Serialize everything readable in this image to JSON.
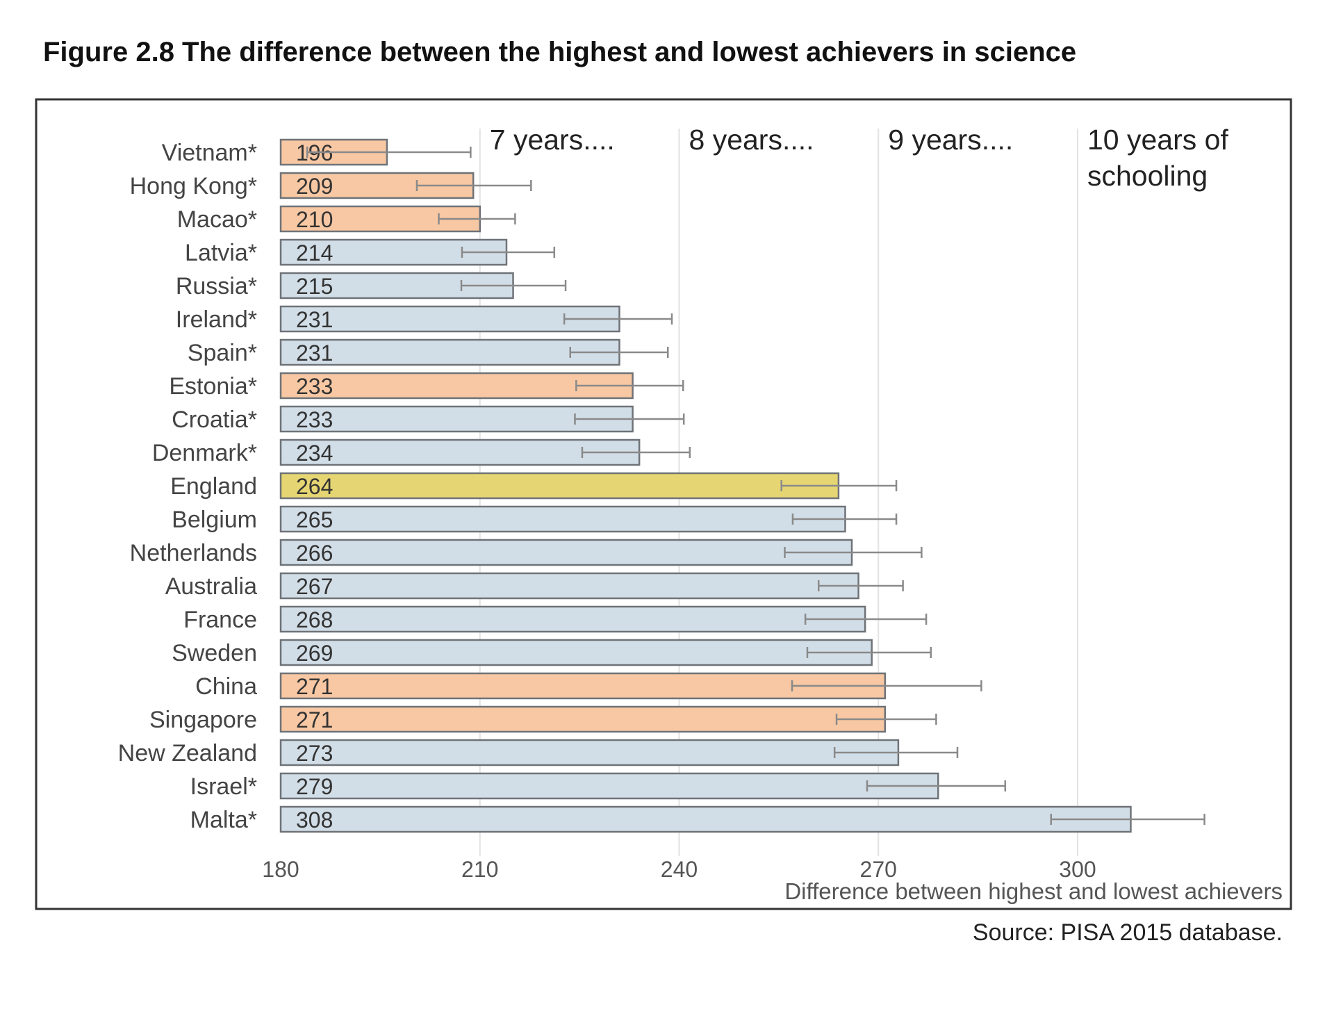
{
  "chart_data": {
    "type": "bar",
    "orientation": "horizontal",
    "title": "Figure 2.8 The difference between the highest and lowest achievers in science",
    "xlabel": "Difference between highest and lowest achievers",
    "ylabel": "",
    "source": "Source: PISA 2015 database.",
    "xlim": [
      180,
      320
    ],
    "xticks": [
      180,
      210,
      240,
      270,
      300
    ],
    "grid": "vertical lines at 210, 240, 270, 300",
    "reference_labels": [
      {
        "x": 210,
        "lines": [
          "7 years...."
        ]
      },
      {
        "x": 240,
        "lines": [
          "8 years...."
        ]
      },
      {
        "x": 270,
        "lines": [
          "9 years...."
        ]
      },
      {
        "x": 300,
        "lines": [
          "10 years of",
          "schooling"
        ]
      }
    ],
    "colors": {
      "east_asia": "#f7c8a3",
      "other": "#d2dee7",
      "england": "#e6d673",
      "border": "#6f7378",
      "error_bar": "#8a8a8a",
      "grid": "#e2e2e2"
    },
    "categories": [
      "Vietnam*",
      "Hong Kong*",
      "Macao*",
      "Latvia*",
      "Russia*",
      "Ireland*",
      "Spain*",
      "Estonia*",
      "Croatia*",
      "Denmark*",
      "England",
      "Belgium",
      "Netherlands",
      "Australia",
      "France",
      "Sweden",
      "China",
      "Singapore",
      "New Zealand",
      "Israel*",
      "Malta*"
    ],
    "values": [
      196,
      209,
      210,
      214,
      215,
      231,
      231,
      233,
      233,
      234,
      264,
      265,
      266,
      267,
      268,
      269,
      271,
      271,
      273,
      279,
      308
    ],
    "groups": [
      "east_asia",
      "east_asia",
      "east_asia",
      "other",
      "other",
      "other",
      "other",
      "east_asia",
      "other",
      "other",
      "england",
      "other",
      "other",
      "other",
      "other",
      "other",
      "east_asia",
      "east_asia",
      "other",
      "other",
      "other"
    ],
    "error_low": [
      184,
      200.5,
      203.8,
      207.3,
      207.2,
      222.7,
      223.6,
      224.5,
      224.3,
      225.4,
      255.4,
      257.1,
      255.9,
      261,
      259,
      259.3,
      257,
      263.7,
      263.4,
      268.3,
      296
    ],
    "error_high": [
      208.6,
      217.7,
      215.3,
      221.2,
      222.9,
      238.9,
      238.3,
      240.6,
      240.7,
      241.6,
      272.7,
      272.7,
      276.5,
      273.7,
      277.2,
      277.9,
      285.5,
      278.7,
      281.9,
      289.1,
      319.1
    ]
  }
}
